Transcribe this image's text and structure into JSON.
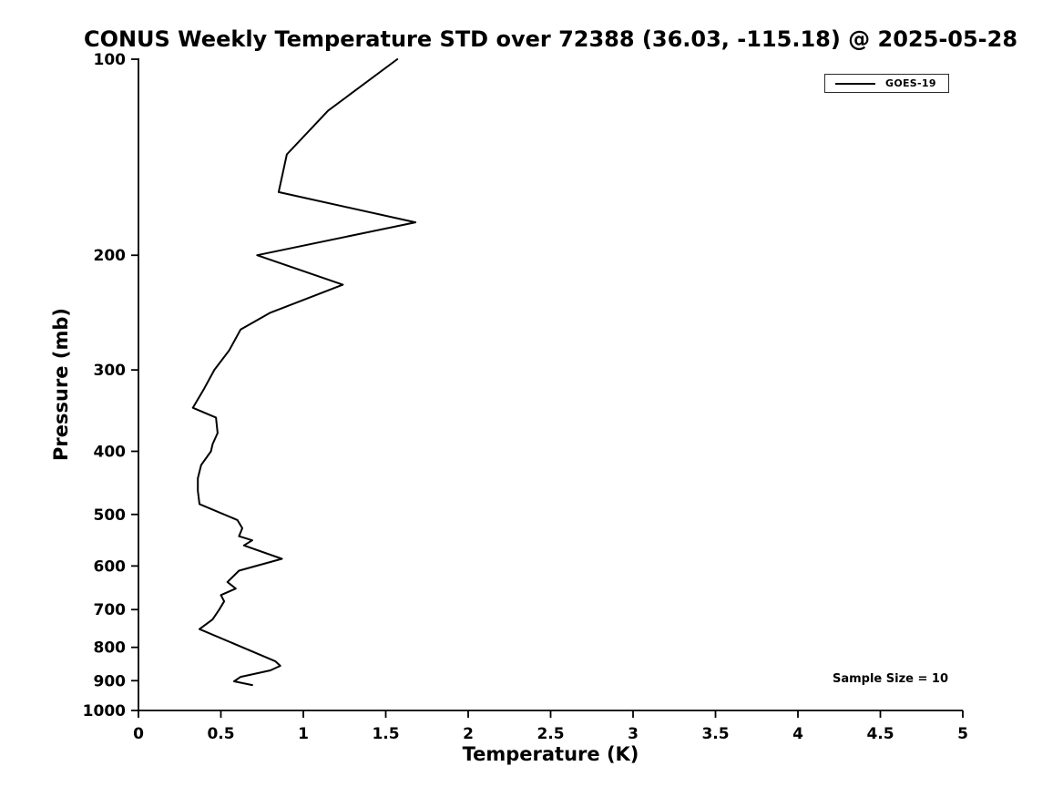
{
  "title": "CONUS Weekly Temperature STD over 72388 (36.03, -115.18) @ 2025-05-28",
  "legend": {
    "label": "GOES-19",
    "line_color": "#000000"
  },
  "annotation": {
    "sample_size_text": "Sample Size = 10"
  },
  "chart_data": {
    "type": "line",
    "title": "CONUS Weekly Temperature STD over 72388 (36.03, -115.18) @ 2025-05-28",
    "xlabel": "Temperature (K)",
    "ylabel": "Pressure (mb)",
    "xlim": [
      0,
      5
    ],
    "ylim": [
      100,
      1000
    ],
    "x_scale": "linear",
    "y_scale": "log",
    "y_axis_inverted": true,
    "grid": false,
    "legend_position": "upper right",
    "xticks": [
      0,
      0.5,
      1,
      1.5,
      2,
      2.5,
      3,
      3.5,
      4,
      4.5,
      5
    ],
    "yticks": [
      100,
      200,
      300,
      400,
      500,
      600,
      700,
      800,
      900,
      1000
    ],
    "line_color": "#000000",
    "line_width": 2,
    "series": [
      {
        "name": "GOES-19",
        "color": "#000000",
        "pressure_mb": [
          100,
          120,
          140,
          160,
          178,
          200,
          222,
          245,
          260,
          280,
          300,
          320,
          343,
          355,
          375,
          390,
          400,
          420,
          440,
          460,
          482,
          510,
          525,
          540,
          548,
          558,
          585,
          610,
          635,
          650,
          665,
          680,
          700,
          725,
          750,
          840,
          854,
          868,
          888,
          902,
          914
        ],
        "temperature_std_K": [
          1.57,
          1.15,
          0.9,
          0.85,
          1.68,
          0.72,
          1.24,
          0.8,
          0.62,
          0.55,
          0.46,
          0.4,
          0.33,
          0.47,
          0.48,
          0.45,
          0.44,
          0.38,
          0.36,
          0.36,
          0.37,
          0.6,
          0.63,
          0.61,
          0.69,
          0.64,
          0.87,
          0.61,
          0.54,
          0.59,
          0.5,
          0.52,
          0.49,
          0.45,
          0.37,
          0.83,
          0.86,
          0.8,
          0.62,
          0.58,
          0.69
        ]
      }
    ],
    "annotations": [
      {
        "text": "Sample Size = 10",
        "position": "lower right"
      }
    ]
  }
}
